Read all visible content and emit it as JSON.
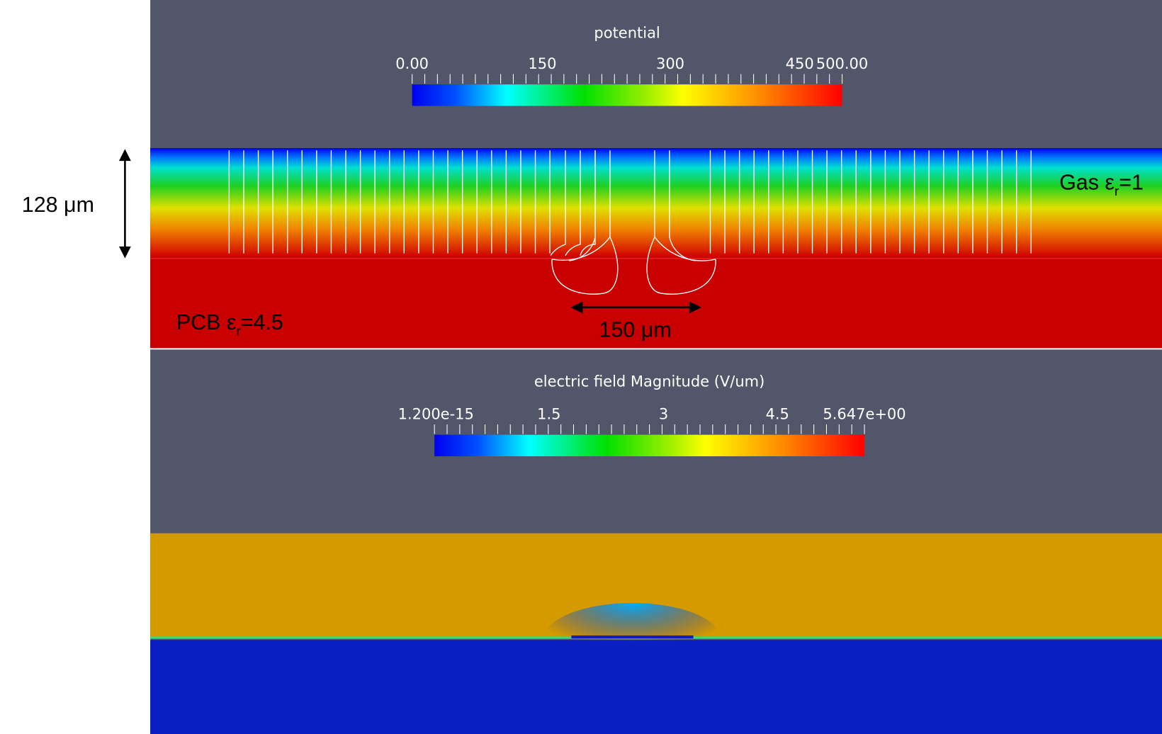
{
  "potential_panel": {
    "colorbar_title": "potential",
    "colorbar_ticks": [
      "0.00",
      "150",
      "300",
      "450",
      "500.00"
    ],
    "height_label": "128 μm",
    "gas_label": {
      "text": "Gas ε",
      "sub": "r",
      "rest": "=1"
    },
    "pcb_label": {
      "text": "PCB ε",
      "sub": "r",
      "rest": "=4.5"
    },
    "width_label": "150 μm"
  },
  "field_panel": {
    "colorbar_title": "electric field Magnitude (V/um)",
    "colorbar_ticks": [
      "1.200e-15",
      "1.5",
      "3",
      "4.5",
      "5.647e+00"
    ]
  }
}
